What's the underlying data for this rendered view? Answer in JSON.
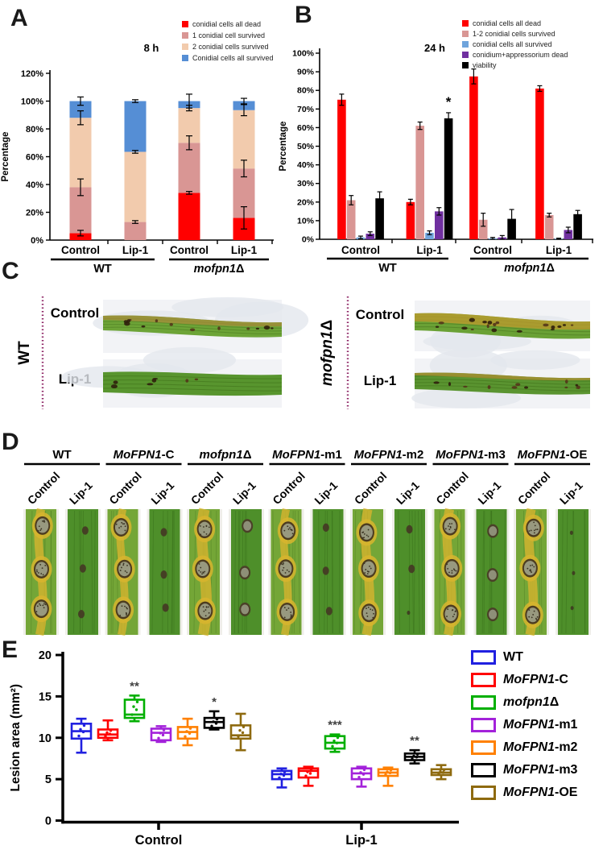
{
  "panels": {
    "a": {
      "label": "A"
    },
    "b": {
      "label": "B"
    },
    "c": {
      "label": "C",
      "groups": [
        {
          "name": "WT",
          "rows": [
            "Control",
            "Lip-1"
          ]
        },
        {
          "name": "mofpn1Δ",
          "rows": [
            "Control",
            "Lip-1"
          ]
        }
      ]
    },
    "d": {
      "label": "D",
      "groups": [
        "WT",
        "MoFPN1-C",
        "mofpn1Δ",
        "MoFPN1-m1",
        "MoFPN1-m2",
        "MoFPN1-m3",
        "MoFPN1-OE"
      ],
      "treatments": [
        "Control",
        "Lip-1"
      ]
    },
    "e": {
      "label": "E"
    }
  },
  "chart_data": [
    {
      "id": "A",
      "type": "bar",
      "subtype": "stacked",
      "title": "8 h",
      "ylabel": "Percentage",
      "ylim": [
        0,
        120
      ],
      "yticks": [
        "0%",
        "20%",
        "40%",
        "60%",
        "80%",
        "100%",
        "120%"
      ],
      "categories": [
        "Control",
        "Lip-1",
        "Control",
        "Lip-1"
      ],
      "groups": [
        {
          "label": "WT"
        },
        {
          "label": "mofpn1Δ"
        }
      ],
      "legend_position": "top-right",
      "series": [
        {
          "name": "conidial cells all dead",
          "color": "#FF0000",
          "values": [
            5,
            0,
            34,
            16
          ],
          "boundary_errors": [
            2,
            0,
            1,
            8
          ]
        },
        {
          "name": "1 conidial cell survived",
          "color": "#D99694",
          "values": [
            33,
            13,
            36,
            35.5
          ],
          "boundary_errors": [
            6,
            1,
            5,
            6
          ]
        },
        {
          "name": "2 conidial cells survived",
          "color": "#F2CBAD",
          "values": [
            50,
            50.5,
            25,
            42
          ],
          "boundary_errors": [
            5,
            1,
            2,
            4
          ]
        },
        {
          "name": "Conidial cells all survived",
          "color": "#558ED5",
          "values": [
            12,
            36.5,
            5,
            6.5
          ],
          "boundary_errors": [
            3,
            1,
            5,
            2
          ]
        }
      ]
    },
    {
      "id": "B",
      "type": "bar",
      "subtype": "grouped",
      "title": "24 h",
      "ylabel": "Percentage",
      "ylim": [
        0,
        100
      ],
      "yticks": [
        "0%",
        "10%",
        "20%",
        "30%",
        "40%",
        "50%",
        "60%",
        "70%",
        "80%",
        "90%",
        "100%"
      ],
      "categories": [
        "Control",
        "Lip-1",
        "Control",
        "Lip-1"
      ],
      "groups": [
        {
          "label": "WT"
        },
        {
          "label": "mofpn1Δ"
        }
      ],
      "legend_position": "top-right",
      "series": [
        {
          "name": "conidial cells all dead",
          "color": "#FF0000",
          "values": [
            75,
            20,
            87.5,
            81
          ],
          "errors": [
            3,
            1.5,
            4,
            1.5
          ]
        },
        {
          "name": "1-2 conidial cells survived",
          "color": "#D99694",
          "values": [
            21,
            61,
            10.5,
            13
          ],
          "errors": [
            2.5,
            2,
            3.5,
            1
          ]
        },
        {
          "name": "conidial cells all survived",
          "color": "#6FA4DC",
          "values": [
            1,
            3.5,
            0.5,
            0.3
          ],
          "errors": [
            0.7,
            1,
            0.5,
            0.3
          ]
        },
        {
          "name": "conidium+appressorium dead",
          "color": "#7030A0",
          "values": [
            3,
            15,
            1,
            5
          ],
          "errors": [
            1,
            2,
            1,
            1.5
          ]
        },
        {
          "name": "viability",
          "color": "#000000",
          "values": [
            22,
            65,
            11,
            13.5
          ],
          "errors": [
            3.5,
            3,
            5,
            2
          ]
        }
      ],
      "annotations": [
        {
          "text": "*",
          "category_index": 1,
          "series_index": 4
        }
      ]
    },
    {
      "id": "E",
      "type": "box",
      "ylabel": "Lesion area (mm²)",
      "ylim": [
        0,
        20
      ],
      "yticks": [
        0,
        5,
        10,
        15,
        20
      ],
      "categories": [
        "Control",
        "Lip-1"
      ],
      "legend": [
        {
          "name": "WT",
          "color": "#2020E0"
        },
        {
          "name": "MoFPN1-C",
          "color": "#FF0000"
        },
        {
          "name": "mofpn1Δ",
          "color": "#00AF00"
        },
        {
          "name": "MoFPN1-m1",
          "color": "#A322DA"
        },
        {
          "name": "MoFPN1-m2",
          "color": "#FF8000"
        },
        {
          "name": "MoFPN1-m3",
          "color": "#000000"
        },
        {
          "name": "MoFPN1-OE",
          "color": "#8E6A0F"
        }
      ],
      "series": [
        {
          "name": "WT",
          "color": "#2020E0",
          "boxes": [
            {
              "category": "Control",
              "low": 8.2,
              "q1": 9.9,
              "median": 10.8,
              "q3": 11.7,
              "high": 12.3,
              "sig": ""
            },
            {
              "category": "Lip-1",
              "low": 4.0,
              "q1": 5.0,
              "median": 5.6,
              "q3": 6.0,
              "high": 6.3,
              "sig": ""
            }
          ]
        },
        {
          "name": "MoFPN1-C",
          "color": "#FF0000",
          "boxes": [
            {
              "category": "Control",
              "low": 9.7,
              "q1": 10.0,
              "median": 10.4,
              "q3": 11.0,
              "high": 12.1,
              "sig": ""
            },
            {
              "category": "Lip-1",
              "low": 4.2,
              "q1": 5.2,
              "median": 6.0,
              "q3": 6.3,
              "high": 6.5,
              "sig": ""
            }
          ]
        },
        {
          "name": "mofpn1Δ",
          "color": "#00AF00",
          "boxes": [
            {
              "category": "Control",
              "low": 12.0,
              "q1": 12.4,
              "median": 12.8,
              "q3": 14.6,
              "high": 15.1,
              "sig": "**"
            },
            {
              "category": "Lip-1",
              "low": 8.3,
              "q1": 8.7,
              "median": 9.4,
              "q3": 10.2,
              "high": 10.4,
              "sig": "***"
            }
          ]
        },
        {
          "name": "MoFPN1-m1",
          "color": "#A322DA",
          "boxes": [
            {
              "category": "Control",
              "low": 9.5,
              "q1": 9.7,
              "median": 10.6,
              "q3": 11.1,
              "high": 11.4,
              "sig": ""
            },
            {
              "category": "Lip-1",
              "low": 4.1,
              "q1": 5.0,
              "median": 5.7,
              "q3": 6.3,
              "high": 6.5,
              "sig": ""
            }
          ]
        },
        {
          "name": "MoFPN1-m2",
          "color": "#FF8000",
          "boxes": [
            {
              "category": "Control",
              "low": 9.1,
              "q1": 9.9,
              "median": 10.7,
              "q3": 11.3,
              "high": 12.3,
              "sig": ""
            },
            {
              "category": "Lip-1",
              "low": 4.2,
              "q1": 5.4,
              "median": 5.8,
              "q3": 6.2,
              "high": 6.4,
              "sig": ""
            }
          ]
        },
        {
          "name": "MoFPN1-m3",
          "color": "#000000",
          "boxes": [
            {
              "category": "Control",
              "low": 11.0,
              "q1": 11.2,
              "median": 11.9,
              "q3": 12.4,
              "high": 13.2,
              "sig": "*"
            },
            {
              "category": "Lip-1",
              "low": 6.9,
              "q1": 7.3,
              "median": 7.7,
              "q3": 8.1,
              "high": 8.5,
              "sig": "**"
            }
          ]
        },
        {
          "name": "MoFPN1-OE",
          "color": "#8E6A0F",
          "boxes": [
            {
              "category": "Control",
              "low": 8.5,
              "q1": 9.9,
              "median": 10.3,
              "q3": 11.5,
              "high": 12.9,
              "sig": ""
            },
            {
              "category": "Lip-1",
              "low": 5.0,
              "q1": 5.5,
              "median": 5.8,
              "q3": 6.2,
              "high": 6.7,
              "sig": ""
            }
          ]
        }
      ]
    }
  ]
}
